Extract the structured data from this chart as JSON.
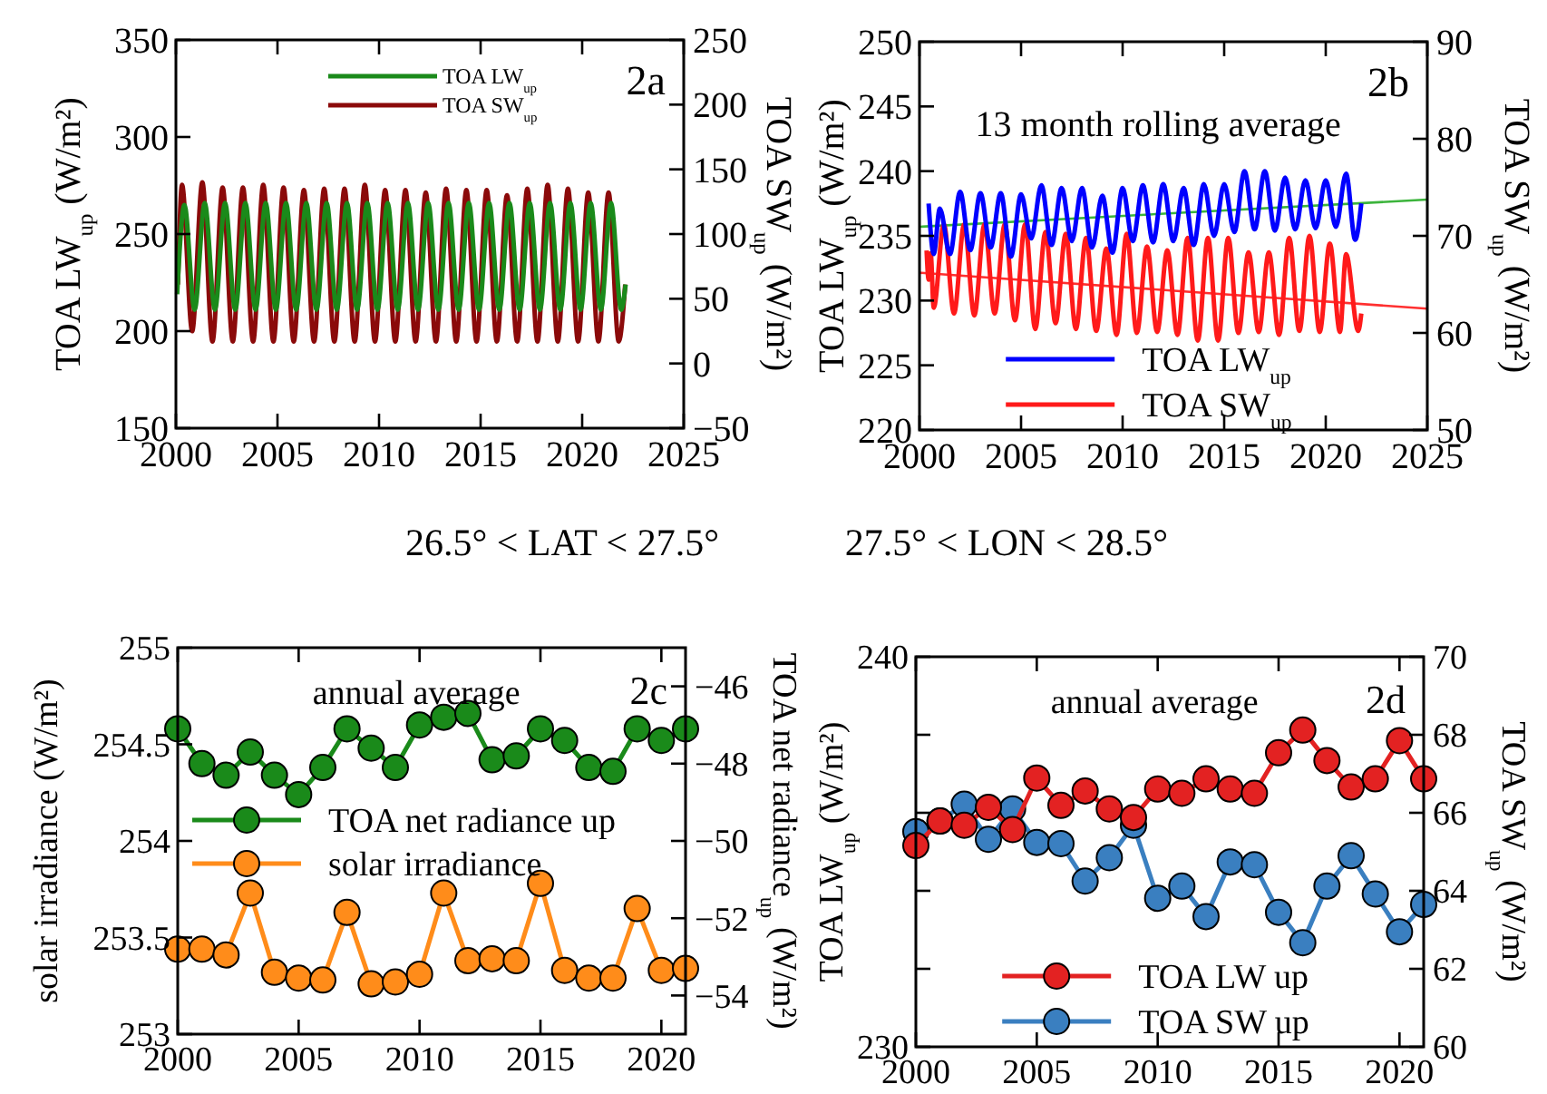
{
  "chart_data": [
    {
      "type": "line",
      "ylabel": "TOA  LW$_{up}$ (W/m²)",
      "y2label": "TOA SW$_{up}$ (W/m²)",
      "xlim": [
        2000,
        2025
      ],
      "xticks": [
        2000,
        2005,
        2010,
        2015,
        2020,
        2025
      ],
      "ylim": [
        150,
        350
      ],
      "yticks": [
        150,
        200,
        250,
        300,
        350
      ],
      "y2lim": [
        -50,
        250
      ],
      "y2ticks": [
        -50,
        0,
        50,
        100,
        150,
        200,
        250
      ],
      "legend": "top",
      "annotations": [
        "2a"
      ],
      "series": [
        {
          "name": "TOA LW$_{up}$",
          "color": "#1a8a1a",
          "x": [
            2000.06,
            2000.42,
            2000.92,
            2001.42,
            2001.92,
            2002.42,
            2002.92,
            2003.42,
            2003.92,
            2004.42,
            2004.92,
            2005.42,
            2005.92,
            2006.42,
            2006.92,
            2007.42,
            2007.92,
            2008.42,
            2008.92,
            2009.42,
            2009.92,
            2010.42,
            2010.92,
            2011.42,
            2011.92,
            2012.42,
            2012.92,
            2013.42,
            2013.92,
            2014.42,
            2014.92,
            2015.42,
            2015.92,
            2016.42,
            2016.92,
            2017.42,
            2017.92,
            2018.42,
            2018.92,
            2019.42,
            2019.92,
            2020.42,
            2020.92,
            2021.42,
            2021.92,
            2022.14
          ],
          "values": [
            219,
            265,
            211,
            266,
            211,
            266,
            211,
            266,
            211,
            266,
            211,
            266,
            211,
            266,
            211,
            266,
            211,
            266,
            211,
            266,
            211,
            266,
            211,
            266,
            211,
            266,
            211,
            266,
            211,
            266,
            211,
            266,
            211,
            266,
            211,
            266,
            211,
            266,
            211,
            266,
            211,
            266,
            211,
            266,
            211,
            224
          ]
        },
        {
          "name": "TOA SW$_{up}$",
          "color": "#8b0a0a",
          "axis": "y2",
          "x": [
            2000.1,
            2000.3,
            2000.8,
            2001.3,
            2001.8,
            2002.3,
            2002.8,
            2003.3,
            2003.8,
            2004.3,
            2004.8,
            2005.3,
            2005.8,
            2006.3,
            2006.8,
            2007.3,
            2007.8,
            2008.3,
            2008.8,
            2009.3,
            2009.8,
            2010.3,
            2010.8,
            2011.3,
            2011.8,
            2012.3,
            2012.8,
            2013.3,
            2013.8,
            2014.3,
            2014.8,
            2015.3,
            2015.8,
            2016.3,
            2016.8,
            2017.3,
            2017.8,
            2018.3,
            2018.8,
            2019.3,
            2019.8,
            2020.3,
            2020.8,
            2021.3,
            2021.8,
            2022.12
          ],
          "values": [
            61,
            138,
            25,
            140,
            17,
            136,
            17,
            136,
            17,
            138,
            17,
            136,
            17,
            134,
            17,
            135,
            17,
            135,
            17,
            138,
            17,
            134,
            17,
            134,
            17,
            132,
            17,
            135,
            17,
            134,
            17,
            134,
            17,
            130,
            17,
            135,
            17,
            138,
            17,
            135,
            17,
            132,
            17,
            132,
            17,
            61
          ]
        }
      ]
    },
    {
      "type": "line",
      "ylabel": "TOA LW$_{up}$ (W/m²)",
      "y2label": "TOA SW$_{up}$ (W/m²)",
      "xlim": [
        2000,
        2025
      ],
      "xticks": [
        2000,
        2005,
        2010,
        2015,
        2020,
        2025
      ],
      "ylim": [
        220,
        250
      ],
      "yticks": [
        220,
        225,
        230,
        235,
        240,
        245,
        250
      ],
      "y2lim": [
        50,
        90
      ],
      "y2ticks": [
        50,
        60,
        70,
        80,
        90
      ],
      "legend": "bottom",
      "annotations": [
        "13 month rolling average",
        "2b"
      ],
      "series": [
        {
          "name": "TOA LW$_{up}$",
          "color": "#0000ff",
          "x": [
            2000.45,
            2000.7,
            2001.0,
            2001.5,
            2002.0,
            2002.5,
            2003.0,
            2003.5,
            2004.0,
            2004.5,
            2005.0,
            2005.5,
            2006.0,
            2006.5,
            2007.0,
            2007.5,
            2008.0,
            2008.5,
            2009.0,
            2009.5,
            2010.0,
            2010.5,
            2011.0,
            2011.5,
            2012.0,
            2012.5,
            2013.0,
            2013.5,
            2014.0,
            2014.5,
            2015.0,
            2015.5,
            2016.0,
            2016.5,
            2017.0,
            2017.5,
            2018.0,
            2018.5,
            2019.0,
            2019.5,
            2020.0,
            2020.5,
            2021.0,
            2021.45,
            2021.75
          ],
          "values": [
            237.5,
            233.6,
            237.1,
            233.6,
            238.4,
            233.9,
            238.3,
            234.1,
            238.3,
            233.4,
            238.2,
            234.8,
            238.9,
            234.3,
            238.7,
            234.6,
            238.7,
            234.1,
            238.1,
            233.7,
            238.7,
            234.6,
            238.9,
            234.5,
            239.0,
            234.6,
            238.7,
            234.3,
            239.0,
            235.0,
            239.0,
            235.3,
            240.0,
            235.5,
            240.0,
            235.4,
            239.5,
            235.5,
            239.3,
            235.6,
            239.3,
            235.7,
            239.8,
            234.7,
            237.5
          ]
        },
        {
          "name": "TOA SW$_{up}$",
          "color": "#ff1a1a",
          "axis": "y2",
          "x": [
            2000.35,
            2000.45,
            2000.55,
            2000.7,
            2001.2,
            2001.7,
            2002.2,
            2002.7,
            2003.2,
            2003.7,
            2004.2,
            2004.7,
            2005.2,
            2005.7,
            2006.2,
            2006.7,
            2007.2,
            2007.7,
            2008.2,
            2008.7,
            2009.2,
            2009.7,
            2010.2,
            2010.7,
            2011.2,
            2011.7,
            2012.2,
            2012.7,
            2013.2,
            2013.7,
            2014.2,
            2014.7,
            2015.2,
            2015.7,
            2016.2,
            2016.7,
            2017.2,
            2017.7,
            2018.2,
            2018.7,
            2019.2,
            2019.7,
            2020.2,
            2020.7,
            2021.0,
            2021.6,
            2021.75
          ],
          "values": [
            68.5,
            65.5,
            68.2,
            62.6,
            71.2,
            62.0,
            71.2,
            61.8,
            71.2,
            62.0,
            71.2,
            61.3,
            71.2,
            60.4,
            70.4,
            61.0,
            70.2,
            60.4,
            69.8,
            60.2,
            68.7,
            59.8,
            70.2,
            60.0,
            68.9,
            60.1,
            68.5,
            59.8,
            69.8,
            59.2,
            69.8,
            59.2,
            69.8,
            60.0,
            68.3,
            60.1,
            68.3,
            59.8,
            69.8,
            60.2,
            70.0,
            60.1,
            69.2,
            60.1,
            68.1,
            60.2,
            62.0
          ]
        },
        {
          "color": "#3cb43c",
          "x": [
            2000,
            2025
          ],
          "values": [
            235.7,
            237.8
          ]
        },
        {
          "color": "#ff3030",
          "axis": "y2",
          "x": [
            2000,
            2025
          ],
          "values": [
            66.2,
            62.5
          ]
        }
      ]
    },
    {
      "type": "other",
      "annotations": [
        "26.5° < LAT < 27.5°",
        "27.5° < LON < 28.5°"
      ]
    },
    {
      "type": "line",
      "ylabel": "solar irradiance (W/m²)",
      "y2label": "TOA net radiance$_{up}$ (W/m²)",
      "xlim": [
        2000,
        2021
      ],
      "xticks": [
        2000,
        2005,
        2010,
        2015,
        2020
      ],
      "ylim": [
        253,
        255
      ],
      "yticks": [
        253,
        253.5,
        254,
        254.5,
        255
      ],
      "y2lim": [
        -55,
        -45
      ],
      "y2ticks": [
        -54,
        -52,
        -50,
        -48,
        -46
      ],
      "legend": "left",
      "marker": "circle",
      "annotations": [
        "annual average",
        "2c"
      ],
      "x": [
        2000,
        2001,
        2002,
        2003,
        2004,
        2005,
        2006,
        2007,
        2008,
        2009,
        2010,
        2011,
        2012,
        2013,
        2014,
        2015,
        2016,
        2017,
        2018,
        2019,
        2020,
        2021
      ],
      "series": [
        {
          "name": "TOA net radiance up",
          "color": "#1a8a1a",
          "axis": "y2",
          "values": [
            -47.1,
            -48.0,
            -48.3,
            -47.7,
            -48.3,
            -48.8,
            -48.1,
            -47.1,
            -47.6,
            -48.1,
            -47.0,
            -46.8,
            -46.7,
            -47.9,
            -47.8,
            -47.1,
            -47.4,
            -48.1,
            -48.2,
            -47.1,
            -47.4,
            -47.1
          ]
        },
        {
          "name": "solar irradiance",
          "color": "#ff8c1a",
          "values": [
            253.44,
            253.44,
            253.41,
            253.73,
            253.32,
            253.29,
            253.28,
            253.63,
            253.26,
            253.27,
            253.31,
            253.73,
            253.38,
            253.39,
            253.38,
            253.78,
            253.33,
            253.29,
            253.29,
            253.65,
            253.33,
            253.34
          ]
        }
      ]
    },
    {
      "type": "line",
      "ylabel": "TOA  LW$_{up}$ (W/m²)",
      "y2label": "TOA SW$_{up}$ (W/m²)",
      "xlim": [
        2000,
        2021
      ],
      "xticks": [
        2000,
        2005,
        2010,
        2015,
        2020
      ],
      "ylim": [
        230,
        240
      ],
      "yticks": [
        230,
        {
          "value": 232,
          "label": null
        },
        {
          "value": 234,
          "label": null
        },
        {
          "value": 236,
          "label": null
        },
        {
          "value": 238,
          "label": null
        },
        240
      ],
      "y2lim": [
        60,
        70
      ],
      "y2ticks": [
        60,
        62,
        64,
        66,
        68,
        70
      ],
      "legend": "bottom",
      "marker": "circle",
      "annotations": [
        "annual average",
        "2d"
      ],
      "x": [
        2000,
        2001,
        2002,
        2003,
        2004,
        2005,
        2006,
        2007,
        2008,
        2009,
        2010,
        2011,
        2012,
        2013,
        2014,
        2015,
        2016,
        2017,
        2018,
        2019,
        2020,
        2021
      ],
      "series": [
        {
          "name": "TOA LW up",
          "color": "#e32222",
          "values": [
            235.16,
            235.79,
            235.68,
            236.14,
            235.57,
            236.89,
            236.19,
            236.56,
            236.1,
            235.88,
            236.61,
            236.5,
            236.87,
            236.61,
            236.5,
            237.54,
            238.12,
            237.34,
            236.66,
            236.87,
            237.85,
            236.87
          ]
        },
        {
          "name": "TOA SW up",
          "color": "#3a7fc0",
          "axis": "y2",
          "values": [
            65.52,
            65.79,
            66.22,
            65.32,
            66.1,
            65.24,
            65.21,
            64.25,
            64.85,
            65.68,
            63.81,
            64.12,
            63.34,
            64.74,
            64.67,
            63.45,
            62.67,
            64.12,
            64.9,
            63.92,
            62.95,
            63.65
          ]
        }
      ]
    }
  ]
}
